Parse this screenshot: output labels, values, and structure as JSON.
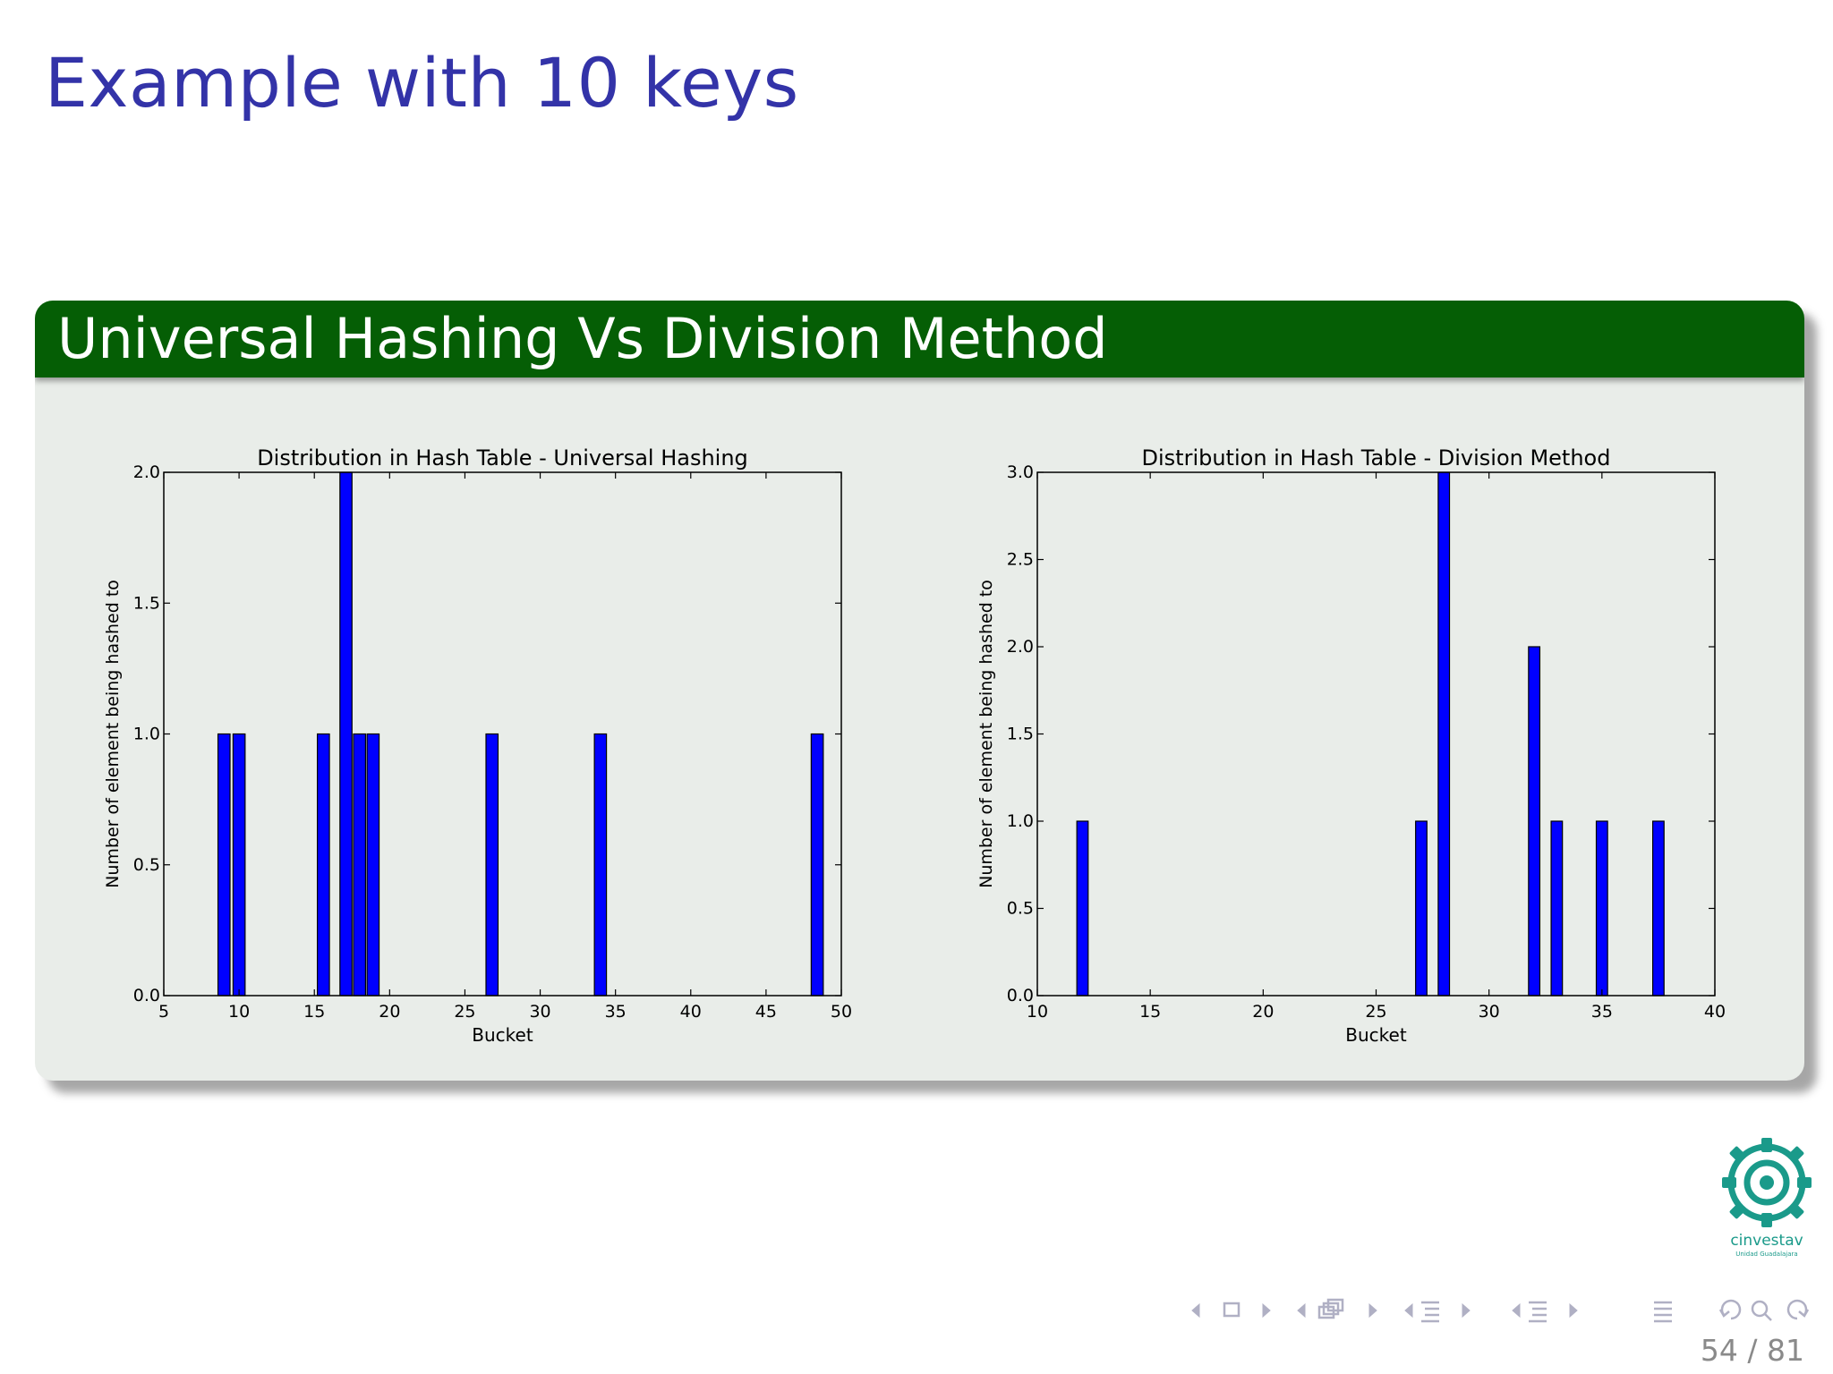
{
  "slide": {
    "title": "Example with 10 keys",
    "block_title": "Universal Hashing Vs Division Method",
    "page_current": "54",
    "page_separator": "/",
    "page_total": "81",
    "logo_text": "cinvestav",
    "logo_subtext": "Unidad Guadalajara",
    "colors": {
      "title": "#3333a8",
      "block_header": "#055e05",
      "block_body": "#e9ede9",
      "bar": "#0000ff",
      "logo": "#1a9a8a"
    }
  },
  "chart_data": [
    {
      "type": "bar",
      "title": "Distribution in Hash Table - Universal Hashing",
      "xlabel": "Bucket",
      "ylabel": "Number of element being hashed to",
      "xlim": [
        5,
        50
      ],
      "ylim": [
        0,
        2
      ],
      "xticks": [
        5,
        10,
        15,
        20,
        25,
        30,
        35,
        40,
        45,
        50
      ],
      "yticks": [
        0.0,
        0.5,
        1.0,
        1.5,
        2.0
      ],
      "xtick_labels": [
        "5",
        "10",
        "15",
        "20",
        "25",
        "30",
        "35",
        "40",
        "45",
        "50"
      ],
      "ytick_labels": [
        "0.0",
        "0.5",
        "1.0",
        "1.5",
        "2.0"
      ],
      "bar_width": 0.8,
      "grid": false,
      "x": [
        9,
        10,
        15.6,
        17.1,
        18,
        18.9,
        26.8,
        34,
        48.4
      ],
      "values": [
        1,
        1,
        1,
        2,
        1,
        1,
        1,
        1,
        1
      ]
    },
    {
      "type": "bar",
      "title": "Distribution in Hash Table - Division Method",
      "xlabel": "Bucket",
      "ylabel": "Number of element being hashed to",
      "xlim": [
        10,
        40
      ],
      "ylim": [
        0,
        3
      ],
      "xticks": [
        10,
        15,
        20,
        25,
        30,
        35,
        40
      ],
      "yticks": [
        0.0,
        0.5,
        1.0,
        1.5,
        2.0,
        2.5,
        3.0
      ],
      "xtick_labels": [
        "10",
        "15",
        "20",
        "25",
        "30",
        "35",
        "40"
      ],
      "ytick_labels": [
        "0.0",
        "0.5",
        "1.0",
        "1.5",
        "2.0",
        "2.5",
        "3.0"
      ],
      "bar_width": 0.5,
      "grid": false,
      "x": [
        12,
        27,
        28,
        32,
        33,
        35,
        37.5
      ],
      "values": [
        1,
        1,
        3,
        2,
        1,
        1,
        1
      ]
    }
  ]
}
